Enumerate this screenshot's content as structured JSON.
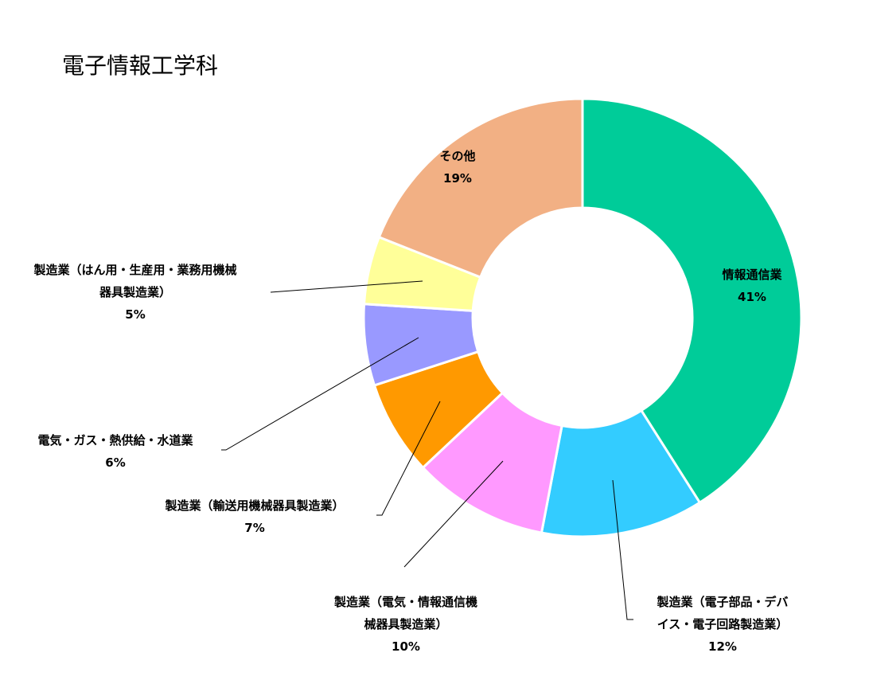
{
  "chart_data": {
    "type": "pie",
    "donut": true,
    "title": "電子情報工学科",
    "slices": [
      {
        "label_lines": [
          "情報通信業"
        ],
        "value": 41,
        "value_label": "41%",
        "color": "#00CC99"
      },
      {
        "label_lines": [
          "製造業（電子部品・デバ",
          "イス・電子回路製造業）"
        ],
        "value": 12,
        "value_label": "12%",
        "color": "#33CCFF"
      },
      {
        "label_lines": [
          "製造業（電気・情報通信機",
          "械器具製造業）"
        ],
        "value": 10,
        "value_label": "10%",
        "color": "#FF99FF"
      },
      {
        "label_lines": [
          "製造業（輸送用機械器具製造業）"
        ],
        "value": 7,
        "value_label": "7%",
        "color": "#FF9900"
      },
      {
        "label_lines": [
          "電気・ガス・熱供給・水道業"
        ],
        "value": 6,
        "value_label": "6%",
        "color": "#9999FF"
      },
      {
        "label_lines": [
          "製造業（はん用・生産用・業務用機械",
          "器具製造業）"
        ],
        "value": 5,
        "value_label": "5%",
        "color": "#FFFF99"
      },
      {
        "label_lines": [
          "その他"
        ],
        "value": 19,
        "value_label": "19%",
        "color": "#F2B084"
      }
    ]
  }
}
